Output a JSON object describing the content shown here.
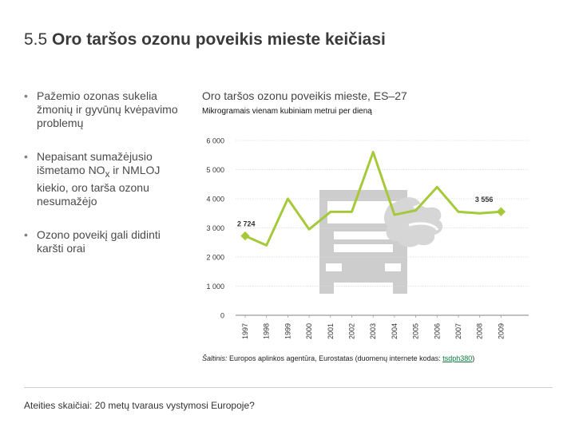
{
  "slide": {
    "title_number": "5.5",
    "title_text": "Oro taršos ozonu poveikis mieste keičiasi",
    "bullets": [
      {
        "text": "Pažemio ozonas sukelia žmonių ir gyvūnų kvėpavimo problemų"
      },
      {
        "pre": "Nepaisant sumažėjusio išmetamo NO",
        "sub": "x",
        "post": " ir NMLOJ kiekio, oro tarša ozonu nesumažėjo"
      },
      {
        "text": "Ozono poveikį gali didinti karšti orai"
      }
    ],
    "footer": "Ateities skaičiai: 20 metų tvaraus vystymosi Europoje?"
  },
  "chart_data": {
    "type": "line",
    "title": "Oro taršos ozonu poveikis mieste, ES–27",
    "unit": "Mikrogramais vienam kubiniam metrui per dieną",
    "x": [
      "1997",
      "1998",
      "1999",
      "2000",
      "2001",
      "2002",
      "2003",
      "2004",
      "2005",
      "2006",
      "2007",
      "2008",
      "2009"
    ],
    "series": [
      {
        "values": [
          2724,
          2400,
          4000,
          2950,
          3550,
          3550,
          5600,
          3450,
          3600,
          4400,
          3550,
          3500,
          3556
        ]
      }
    ],
    "ylim": [
      0,
      6000
    ],
    "yticks": [
      "0",
      "1 000",
      "2 000",
      "3 000",
      "4 000",
      "5 000",
      "6 000"
    ],
    "annotations": [
      {
        "index": 0,
        "text": "2 724"
      },
      {
        "index": 12,
        "text": "3 556"
      }
    ],
    "grid": true,
    "line_color": "#a6c93a",
    "grid_color": "#d9d9d9",
    "illustration_color": "#cdcdcd",
    "source_label": "Šaltinis:",
    "source_text": " Europos aplinkos agentūra, Eurostatas (duomenų internete kodas: ",
    "source_link": "tsdph380",
    "source_close": ")"
  }
}
